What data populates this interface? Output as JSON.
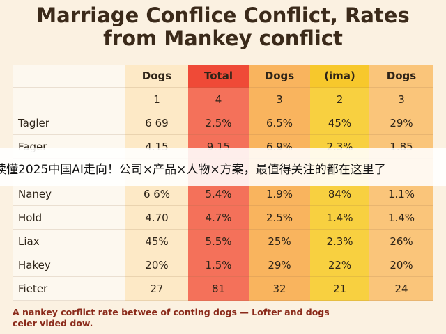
{
  "header": {
    "title_lines": [
      "Marriage Conflice Conflict, Rates",
      "from Mankey conflict"
    ]
  },
  "table": {
    "columns": [
      "Dogs",
      "Total",
      "Dogs",
      "(ima)",
      "Dogs"
    ],
    "subheader": [
      "1",
      "4",
      "3",
      "2",
      "3"
    ],
    "rows": [
      [
        "Tagler",
        "6 69",
        "2.5%",
        "6.5%",
        "45%",
        "29%"
      ],
      [
        "Fager",
        "4.15",
        "9.15",
        "6.9%",
        "2.3%",
        "1.85"
      ],
      [
        "Naney",
        "6 6%",
        "5.4%",
        "1.9%",
        "84%",
        "1.1%"
      ],
      [
        "Hold",
        "4.70",
        "4.7%",
        "2.5%",
        "1.4%",
        "1.4%"
      ],
      [
        "Liax",
        "45%",
        "5.5%",
        "25%",
        "2.3%",
        "26%"
      ],
      [
        "Hakey",
        "20%",
        "1.5%",
        "29%",
        "22%",
        "20%"
      ],
      [
        "Fieter",
        "27",
        "81",
        "32",
        "21",
        "24"
      ]
    ]
  },
  "footnote": [
    "A nankey corflict rate betwee of conting dogs — Lofter and dogs",
    "celer vided dow."
  ],
  "banner": {
    "text": "读懂2025中国AI走向！公司×产品×人物×方案，最值得关注的都在这里了"
  }
}
